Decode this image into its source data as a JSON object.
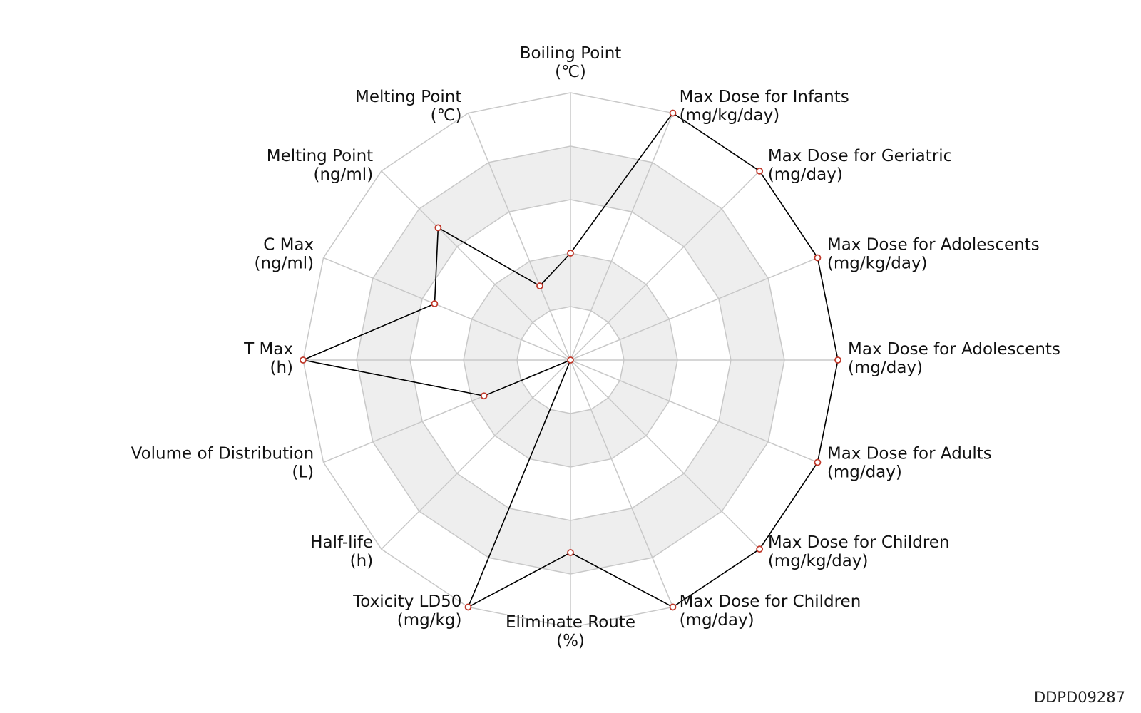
{
  "chart_data": {
    "type": "radar",
    "range": [
      0,
      1
    ],
    "rings": 5,
    "axes": [
      {
        "name": "Boiling Point",
        "unit": "(℃)",
        "value": 0.4
      },
      {
        "name": "Max Dose for Infants",
        "unit": "(mg/kg/day)",
        "value": 1.0
      },
      {
        "name": "Max Dose for Geriatric",
        "unit": "(mg/day)",
        "value": 1.0
      },
      {
        "name": "Max Dose for Adolescents",
        "unit": "(mg/kg/day)",
        "value": 1.0
      },
      {
        "name": "Max Dose for Adolescents",
        "unit": "(mg/day)",
        "value": 1.0
      },
      {
        "name": "Max Dose for Adults",
        "unit": "(mg/day)",
        "value": 1.0
      },
      {
        "name": "Max Dose for Children",
        "unit": "(mg/kg/day)",
        "value": 1.0
      },
      {
        "name": "Max Dose for Children",
        "unit": "(mg/day)",
        "value": 1.0
      },
      {
        "name": "Eliminate Route",
        "unit": "(%)",
        "value": 0.72
      },
      {
        "name": "Toxicity LD50",
        "unit": "(mg/kg)",
        "value": 1.0
      },
      {
        "name": "Half-life",
        "unit": "(h)",
        "value": 0.0
      },
      {
        "name": "Volume of Distribution",
        "unit": "(L)",
        "value": 0.35
      },
      {
        "name": "T Max",
        "unit": "(h)",
        "value": 1.0
      },
      {
        "name": "C Max",
        "unit": "(ng/ml)",
        "value": 0.55
      },
      {
        "name": "Melting Point",
        "unit": "(ng/ml)",
        "value": 0.7
      },
      {
        "name": "Melting Point",
        "unit": "(℃)",
        "value": 0.3
      }
    ]
  },
  "colors": {
    "grid": "#c8c8c8",
    "band": "#eeeeee",
    "line": "#000000",
    "marker": "#c0392b"
  },
  "footer": {
    "code": "DDPD09287"
  }
}
